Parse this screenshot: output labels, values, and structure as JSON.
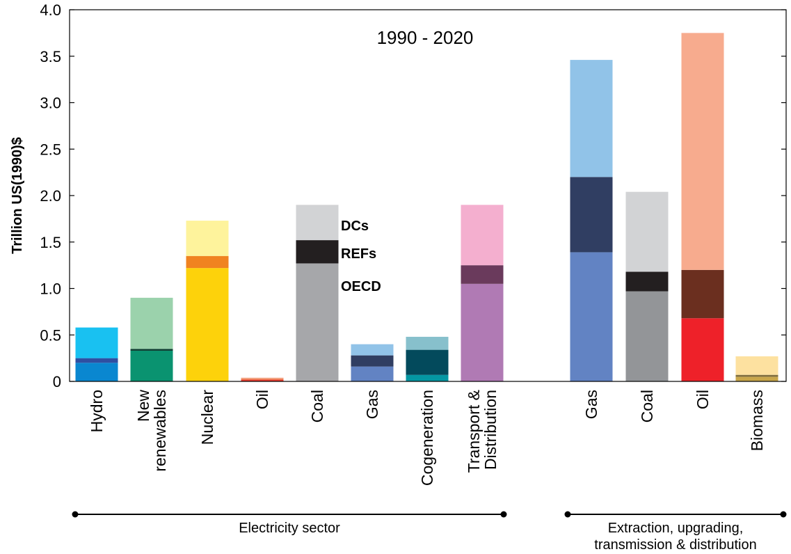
{
  "chart_data": {
    "type": "bar",
    "stacked": true,
    "title": "1990 - 2020",
    "ylabel": "Trillion US(1990)$",
    "ylim": [
      0,
      4.0
    ],
    "yticks": [
      "0",
      "0.5",
      "1.0",
      "1.5",
      "2.0",
      "2.5",
      "3.0",
      "3.5",
      "4.0"
    ],
    "grid": false,
    "legend_labels": [
      "OECD",
      "REFs",
      "DCs"
    ],
    "groups": [
      {
        "label": "Electricity sector"
      },
      {
        "label": "Extraction, upgrading, transmission & distribution",
        "lines": [
          "Extraction, upgrading,",
          "transmission & distribution"
        ]
      }
    ],
    "categories": [
      {
        "label": "Hydro",
        "lines": [
          "Hydro"
        ],
        "group": 0,
        "segments": [
          {
            "series": "OECD",
            "value": 0.2,
            "color": "#0a87d0"
          },
          {
            "series": "REFs",
            "value": 0.05,
            "color": "#2f4fa2"
          },
          {
            "series": "DCs",
            "value": 0.33,
            "color": "#19c1f1"
          }
        ]
      },
      {
        "label": "New renewables",
        "lines": [
          "New",
          "renewables"
        ],
        "group": 0,
        "segments": [
          {
            "series": "OECD",
            "value": 0.33,
            "color": "#0a9370"
          },
          {
            "series": "REFs",
            "value": 0.02,
            "color": "#0b3d2f"
          },
          {
            "series": "DCs",
            "value": 0.55,
            "color": "#9bd2ac"
          }
        ]
      },
      {
        "label": "Nuclear",
        "lines": [
          "Nuclear"
        ],
        "group": 0,
        "segments": [
          {
            "series": "OECD",
            "value": 1.22,
            "color": "#fdd20b"
          },
          {
            "series": "REFs",
            "value": 0.13,
            "color": "#f08320"
          },
          {
            "series": "DCs",
            "value": 0.38,
            "color": "#fef39c"
          }
        ]
      },
      {
        "label": "Oil",
        "lines": [
          "Oil"
        ],
        "group": 0,
        "segments": [
          {
            "series": "OECD",
            "value": 0.02,
            "color": "#ee3b2d"
          },
          {
            "series": "REFs",
            "value": 0.01,
            "color": "#e98f5e"
          },
          {
            "series": "DCs",
            "value": 0.01,
            "color": "#f7ad95"
          }
        ]
      },
      {
        "label": "Coal",
        "lines": [
          "Coal"
        ],
        "group": 0,
        "segments": [
          {
            "series": "OECD",
            "value": 1.27,
            "color": "#a6a7aa"
          },
          {
            "series": "REFs",
            "value": 0.25,
            "color": "#231f20"
          },
          {
            "series": "DCs",
            "value": 0.38,
            "color": "#d2d3d5"
          }
        ]
      },
      {
        "label": "Gas",
        "lines": [
          "Gas"
        ],
        "group": 0,
        "segments": [
          {
            "series": "OECD",
            "value": 0.16,
            "color": "#6283c3"
          },
          {
            "series": "REFs",
            "value": 0.12,
            "color": "#303e62"
          },
          {
            "series": "DCs",
            "value": 0.12,
            "color": "#91c3e8"
          }
        ]
      },
      {
        "label": "Cogeneration",
        "lines": [
          "Cogeneration"
        ],
        "group": 0,
        "segments": [
          {
            "series": "OECD",
            "value": 0.07,
            "color": "#0497a3"
          },
          {
            "series": "REFs",
            "value": 0.27,
            "color": "#034a5c"
          },
          {
            "series": "DCs",
            "value": 0.14,
            "color": "#87c0cc"
          }
        ]
      },
      {
        "label": "Transport & Distribution",
        "lines": [
          "Transport &",
          "Distribution"
        ],
        "group": 0,
        "segments": [
          {
            "series": "OECD",
            "value": 1.05,
            "color": "#b07ab4"
          },
          {
            "series": "REFs",
            "value": 0.2,
            "color": "#6a3a5c"
          },
          {
            "series": "DCs",
            "value": 0.65,
            "color": "#f4afcf"
          }
        ]
      },
      {
        "label": "Gas",
        "lines": [
          "Gas"
        ],
        "group": 1,
        "segments": [
          {
            "series": "OECD",
            "value": 1.39,
            "color": "#6283c3"
          },
          {
            "series": "REFs",
            "value": 0.81,
            "color": "#303e62"
          },
          {
            "series": "DCs",
            "value": 1.26,
            "color": "#91c3e8"
          }
        ]
      },
      {
        "label": "Coal",
        "lines": [
          "Coal"
        ],
        "group": 1,
        "segments": [
          {
            "series": "OECD",
            "value": 0.97,
            "color": "#939598"
          },
          {
            "series": "REFs",
            "value": 0.21,
            "color": "#231f20"
          },
          {
            "series": "DCs",
            "value": 0.86,
            "color": "#d2d3d5"
          }
        ]
      },
      {
        "label": "Oil",
        "lines": [
          "Oil"
        ],
        "group": 1,
        "segments": [
          {
            "series": "OECD",
            "value": 0.68,
            "color": "#ee2129"
          },
          {
            "series": "REFs",
            "value": 0.52,
            "color": "#6b2f1f"
          },
          {
            "series": "DCs",
            "value": 2.55,
            "color": "#f7ab8e"
          }
        ]
      },
      {
        "label": "Biomass",
        "lines": [
          "Biomass"
        ],
        "group": 1,
        "segments": [
          {
            "series": "OECD",
            "value": 0.05,
            "color": "#c8a64a"
          },
          {
            "series": "REFs",
            "value": 0.02,
            "color": "#7d6b3c"
          },
          {
            "series": "DCs",
            "value": 0.2,
            "color": "#fde1a0"
          }
        ]
      }
    ]
  }
}
